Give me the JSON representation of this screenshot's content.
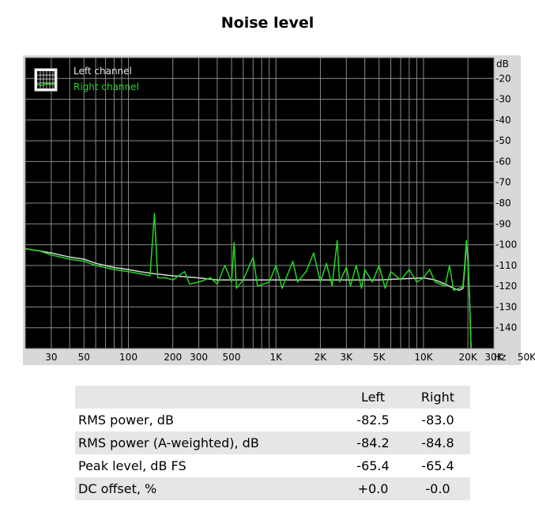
{
  "title": "Noise level",
  "chart_data": {
    "type": "line",
    "xscale": "log",
    "xlim": [
      20,
      30000
    ],
    "ylim": [
      -150,
      -10
    ],
    "y_unit": "dB",
    "x_unit": "Hz",
    "x_ticks": [
      {
        "v": 30,
        "label": "30"
      },
      {
        "v": 50,
        "label": "50"
      },
      {
        "v": 100,
        "label": "100"
      },
      {
        "v": 200,
        "label": "200"
      },
      {
        "v": 300,
        "label": "300"
      },
      {
        "v": 500,
        "label": "500"
      },
      {
        "v": 1000,
        "label": "1K"
      },
      {
        "v": 2000,
        "label": "2K"
      },
      {
        "v": 3000,
        "label": "3K"
      },
      {
        "v": 5000,
        "label": "5K"
      },
      {
        "v": 10000,
        "label": "10K"
      },
      {
        "v": 20000,
        "label": "20K"
      },
      {
        "v": 30000,
        "label": "30K"
      },
      {
        "v": 50000,
        "label": "50K"
      }
    ],
    "y_ticks": [
      -20,
      -30,
      -40,
      -50,
      -60,
      -70,
      -80,
      -90,
      -100,
      -110,
      -120,
      -130,
      -140
    ],
    "grid": true,
    "legend_position": "top-left",
    "series": [
      {
        "name": "Left channel",
        "color": "#d8d8d8",
        "points": [
          [
            20,
            -102
          ],
          [
            25,
            -103
          ],
          [
            30,
            -104
          ],
          [
            40,
            -106
          ],
          [
            50,
            -107
          ],
          [
            60,
            -109
          ],
          [
            80,
            -111
          ],
          [
            100,
            -112
          ],
          [
            120,
            -113
          ],
          [
            150,
            -114
          ],
          [
            200,
            -115
          ],
          [
            300,
            -116
          ],
          [
            400,
            -117
          ],
          [
            500,
            -117
          ],
          [
            700,
            -117
          ],
          [
            1000,
            -117
          ],
          [
            1500,
            -117
          ],
          [
            2000,
            -117
          ],
          [
            3000,
            -117
          ],
          [
            5000,
            -117
          ],
          [
            7000,
            -116.5
          ],
          [
            10000,
            -116
          ],
          [
            12000,
            -117
          ],
          [
            14000,
            -119
          ],
          [
            16000,
            -121
          ],
          [
            17500,
            -122
          ],
          [
            18500,
            -121
          ],
          [
            19000,
            -112
          ],
          [
            19500,
            -100
          ],
          [
            20000,
            -105
          ],
          [
            20500,
            -125
          ],
          [
            21000,
            -150
          ]
        ]
      },
      {
        "name": "Right channel",
        "color": "#22d822",
        "points": [
          [
            20,
            -102
          ],
          [
            25,
            -103
          ],
          [
            30,
            -105
          ],
          [
            40,
            -107
          ],
          [
            50,
            -108
          ],
          [
            60,
            -110
          ],
          [
            80,
            -112
          ],
          [
            100,
            -113
          ],
          [
            120,
            -114
          ],
          [
            140,
            -115
          ],
          [
            150,
            -85
          ],
          [
            158,
            -116
          ],
          [
            180,
            -116
          ],
          [
            200,
            -117
          ],
          [
            240,
            -113
          ],
          [
            260,
            -119
          ],
          [
            300,
            -118
          ],
          [
            360,
            -116
          ],
          [
            400,
            -119
          ],
          [
            450,
            -110
          ],
          [
            500,
            -118
          ],
          [
            520,
            -99
          ],
          [
            540,
            -121
          ],
          [
            600,
            -117
          ],
          [
            700,
            -106
          ],
          [
            750,
            -120
          ],
          [
            900,
            -118
          ],
          [
            1000,
            -110
          ],
          [
            1100,
            -121
          ],
          [
            1300,
            -108
          ],
          [
            1400,
            -118
          ],
          [
            1600,
            -113
          ],
          [
            1800,
            -104
          ],
          [
            2000,
            -118
          ],
          [
            2200,
            -109
          ],
          [
            2400,
            -120
          ],
          [
            2600,
            -98
          ],
          [
            2700,
            -118
          ],
          [
            3000,
            -111
          ],
          [
            3200,
            -120
          ],
          [
            3500,
            -110
          ],
          [
            3800,
            -121
          ],
          [
            4000,
            -112
          ],
          [
            4500,
            -118
          ],
          [
            5000,
            -110
          ],
          [
            5500,
            -121
          ],
          [
            6000,
            -113
          ],
          [
            7000,
            -117
          ],
          [
            8000,
            -112
          ],
          [
            9000,
            -118
          ],
          [
            10000,
            -116
          ],
          [
            11000,
            -112
          ],
          [
            12000,
            -118
          ],
          [
            14000,
            -120
          ],
          [
            15000,
            -110
          ],
          [
            16000,
            -122
          ],
          [
            17500,
            -121
          ],
          [
            18500,
            -120
          ],
          [
            19000,
            -110
          ],
          [
            19500,
            -98
          ],
          [
            20000,
            -108
          ],
          [
            20500,
            -125
          ],
          [
            21000,
            -150
          ]
        ]
      }
    ]
  },
  "stats": {
    "header": {
      "left": "Left",
      "right": "Right"
    },
    "rows": [
      {
        "label": "RMS power, dB",
        "left": "-82.5",
        "right": "-83.0"
      },
      {
        "label": "RMS power (A-weighted), dB",
        "left": "-84.2",
        "right": "-84.8"
      },
      {
        "label": "Peak level, dB FS",
        "left": "-65.4",
        "right": "-65.4"
      },
      {
        "label": "DC offset, %",
        "left": "+0.0",
        "right": "-0.0"
      }
    ]
  }
}
